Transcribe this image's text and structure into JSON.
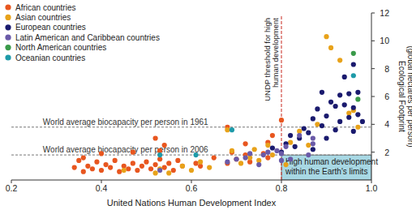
{
  "chart_data": {
    "type": "scatter",
    "x_label": "United Nations Human Development Index",
    "y_label": [
      "Ecological Footprint",
      "(global hectares per person)"
    ],
    "xlim": [
      0.2,
      1.0
    ],
    "xticks": [
      0.2,
      0.4,
      0.6,
      0.8,
      {
        "value": 1.0,
        "label": "1.0"
      }
    ],
    "ylim": [
      0,
      12
    ],
    "yticks": [
      2,
      4,
      6,
      8,
      10,
      12
    ],
    "grid": false,
    "legend": "top-left",
    "marker": "circle",
    "reference_lines": [
      {
        "label": "World average biocapacity per person in 1961",
        "value": 3.8
      },
      {
        "label": "World average biocapacity per person in 2006",
        "value": 1.8
      }
    ],
    "threshold": {
      "label": [
        "UNDP threshold for high",
        "human development"
      ],
      "value": 0.8
    },
    "region": {
      "label": [
        "High human development",
        "within the Earth's limits"
      ],
      "x": [
        0.8,
        1.0
      ],
      "y": [
        0,
        1.8
      ]
    },
    "series": [
      {
        "name": "African countries",
        "color": "#e8561f",
        "x": [
          0.34,
          0.35,
          0.36,
          0.37,
          0.38,
          0.39,
          0.4,
          0.41,
          0.42,
          0.43,
          0.44,
          0.45,
          0.46,
          0.47,
          0.48,
          0.49,
          0.5,
          0.51,
          0.52,
          0.53,
          0.54,
          0.55,
          0.56,
          0.57,
          0.58,
          0.47,
          0.52,
          0.53,
          0.54,
          0.61,
          0.62,
          0.65,
          0.68,
          0.69,
          0.7,
          0.72,
          0.73,
          0.76,
          0.77,
          0.68,
          0.77,
          0.78,
          0.8,
          0.72,
          0.4,
          0.36
        ],
        "values": [
          0.9,
          1.4,
          0.6,
          1.0,
          0.8,
          1.3,
          0.7,
          1.1,
          0.9,
          1.4,
          0.6,
          1.0,
          0.8,
          1.2,
          0.7,
          1.0,
          1.3,
          0.8,
          1.1,
          1.5,
          0.9,
          1.2,
          0.7,
          1.4,
          1.0,
          2.0,
          3.0,
          2.1,
          2.5,
          1.2,
          1.0,
          1.6,
          1.2,
          2.0,
          1.5,
          1.8,
          1.3,
          1.9,
          1.6,
          3.8,
          2.7,
          3.2,
          4.3,
          2.6,
          1.9,
          1.6
        ]
      },
      {
        "name": "Asian countries",
        "color": "#e8a21a",
        "x": [
          0.45,
          0.52,
          0.53,
          0.55,
          0.58,
          0.6,
          0.62,
          0.64,
          0.69,
          0.71,
          0.73,
          0.74,
          0.75,
          0.77,
          0.78,
          0.81,
          0.82,
          0.84,
          0.86,
          0.88,
          0.9,
          0.91,
          0.93,
          0.95,
          0.96,
          0.97,
          0.68
        ],
        "values": [
          0.7,
          0.5,
          0.8,
          0.5,
          1.0,
          0.7,
          1.3,
          0.9,
          2.1,
          1.2,
          1.6,
          2.2,
          1.4,
          2.5,
          1.8,
          1.1,
          2.7,
          3.5,
          2.5,
          4.0,
          10.3,
          9.5,
          8.6,
          4.8,
          5.0,
          3.8,
          3.6
        ]
      },
      {
        "name": "European countries",
        "color": "#1a1a6e",
        "x": [
          0.78,
          0.8,
          0.81,
          0.82,
          0.84,
          0.85,
          0.86,
          0.87,
          0.88,
          0.89,
          0.89,
          0.9,
          0.91,
          0.92,
          0.93,
          0.93,
          0.94,
          0.94,
          0.95,
          0.95,
          0.96,
          0.96,
          0.97,
          0.97,
          0.98,
          0.96,
          0.92,
          0.83,
          0.87,
          0.9
        ],
        "values": [
          2.3,
          2.0,
          2.6,
          3.2,
          3.0,
          3.7,
          3.4,
          4.4,
          5.1,
          3.9,
          6.3,
          4.6,
          5.6,
          5.3,
          4.2,
          6.1,
          5.4,
          7.4,
          4.5,
          6.2,
          5.2,
          8.3,
          6.3,
          4.7,
          4.2,
          3.5,
          3.6,
          2.4,
          2.2,
          3.0
        ]
      },
      {
        "name": "Latin American and Caribbean countries",
        "color": "#6a5aa8",
        "x": [
          0.53,
          0.68,
          0.7,
          0.72,
          0.73,
          0.75,
          0.76,
          0.77,
          0.79,
          0.8,
          0.8,
          0.81,
          0.82,
          0.84,
          0.87,
          0.86,
          0.87
        ],
        "values": [
          0.7,
          1.3,
          1.5,
          1.6,
          1.9,
          1.1,
          1.8,
          2.0,
          2.1,
          1.9,
          1.4,
          2.4,
          1.5,
          3.2,
          2.6,
          1.8,
          3.0
        ]
      },
      {
        "name": "North American countries",
        "color": "#3a9a4a",
        "x": [
          0.96,
          0.97
        ],
        "values": [
          9.1,
          5.8
        ]
      },
      {
        "name": "Oceanian countries",
        "color": "#1e9aa8",
        "x": [
          0.53,
          0.61,
          0.69,
          0.96
        ],
        "values": [
          1.8,
          1.8,
          3.6,
          7.5
        ]
      }
    ]
  }
}
